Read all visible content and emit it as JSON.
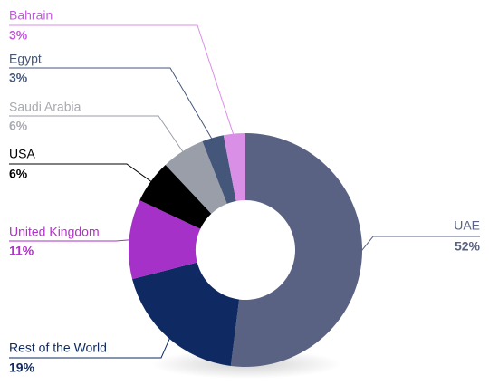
{
  "chart_data": {
    "type": "donut",
    "categories": [
      "UAE",
      "Rest of the World",
      "United Kingdom",
      "USA",
      "Saudi Arabia",
      "Egypt",
      "Bahrain"
    ],
    "values": [
      52,
      19,
      11,
      6,
      6,
      3,
      3
    ],
    "value_labels": [
      "52%",
      "19%",
      "11%",
      "6%",
      "6%",
      "3%",
      "3%"
    ],
    "colors": [
      "#5a6283",
      "#0f2a62",
      "#a631c9",
      "#000000",
      "#9a9ea8",
      "#44567a",
      "#d98fe6"
    ]
  }
}
